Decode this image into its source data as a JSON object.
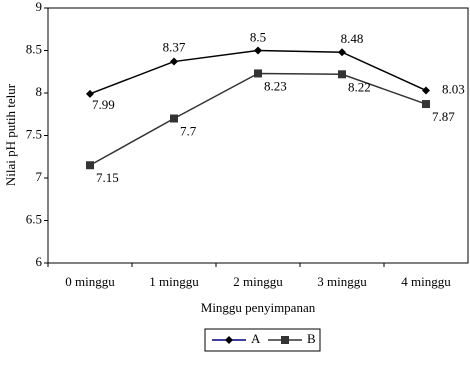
{
  "chart_data": {
    "type": "line",
    "categories": [
      "0 minggu",
      "1 minggu",
      "2 minggu",
      "3 minggu",
      "4 minggu"
    ],
    "series": [
      {
        "name": "A",
        "color": "#000000",
        "marker": "diamond",
        "values": [
          7.99,
          8.37,
          8.5,
          8.48,
          8.03
        ]
      },
      {
        "name": "B",
        "color": "#333333",
        "marker": "square",
        "values": [
          7.15,
          7.7,
          8.23,
          8.22,
          7.87
        ]
      }
    ],
    "xlabel": "Minggu penyimpanan",
    "ylabel": "Nilai pH putih telur",
    "ylim": [
      6,
      9
    ],
    "yticks": [
      6,
      6.5,
      7,
      7.5,
      8,
      8.5,
      9
    ],
    "legend": "bottom"
  }
}
